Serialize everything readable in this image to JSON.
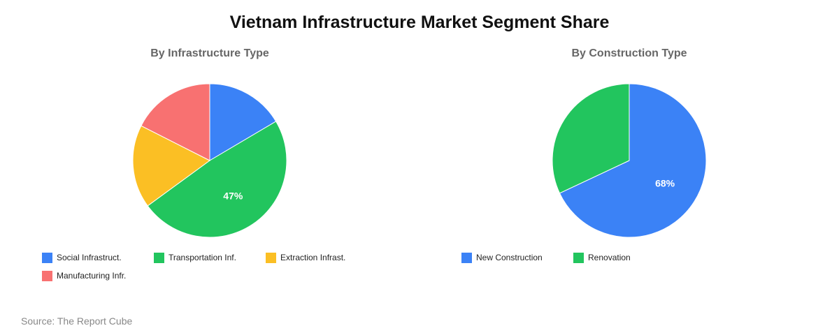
{
  "title": "Vietnam Infrastructure Market Segment Share",
  "source": "Source: The Report Cube",
  "chart_data": [
    {
      "type": "pie",
      "title": "By Infrastructure Type",
      "legend": "bottom",
      "slices": [
        {
          "label": "Social Infrastruct.",
          "value": 16,
          "color": "#3b82f6",
          "data_label": ""
        },
        {
          "label": "Transportation Inf.",
          "value": 47,
          "color": "#22c55e",
          "data_label": "47%"
        },
        {
          "label": "Extraction Infrast.",
          "value": 17,
          "color": "#fbbf24",
          "data_label": ""
        },
        {
          "label": "Manufacturing Infr.",
          "value": 17,
          "color": "#f87171",
          "data_label": ""
        }
      ]
    },
    {
      "type": "pie",
      "title": "By Construction Type",
      "legend": "bottom",
      "slices": [
        {
          "label": "New Construction",
          "value": 68,
          "color": "#3b82f6",
          "data_label": "68%"
        },
        {
          "label": "Renovation",
          "value": 32,
          "color": "#22c55e",
          "data_label": ""
        }
      ]
    }
  ]
}
